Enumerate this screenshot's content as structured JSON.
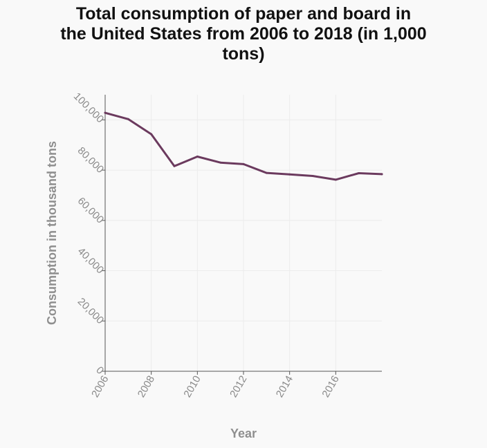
{
  "chart_data": {
    "type": "line",
    "title_lines": [
      "Total consumption of paper and board in",
      "the United States from 2006 to 2018 (in 1,000",
      "tons)"
    ],
    "xlabel": "Year",
    "ylabel": "Consumption in thousand tons",
    "xlim": [
      2006,
      2018
    ],
    "ylim": [
      0,
      110000
    ],
    "x_ticks": [
      2006,
      2008,
      2010,
      2012,
      2014,
      2016
    ],
    "x_tick_labels": [
      "2006",
      "2008",
      "2010",
      "2012",
      "2014",
      "2016"
    ],
    "y_ticks": [
      0,
      20000,
      40000,
      60000,
      80000,
      100000
    ],
    "y_tick_labels": [
      "0",
      "20,000",
      "40,000",
      "60,000",
      "80,000",
      "100,000"
    ],
    "grid": true,
    "series": [
      {
        "color": "#6b3a5e",
        "x": [
          2006,
          2007,
          2008,
          2009,
          2010,
          2011,
          2012,
          2013,
          2014,
          2015,
          2016,
          2017,
          2018
        ],
        "y": [
          102800,
          100300,
          94300,
          81600,
          85400,
          83000,
          82400,
          78900,
          78300,
          77700,
          76200,
          78800,
          78400
        ]
      }
    ]
  }
}
